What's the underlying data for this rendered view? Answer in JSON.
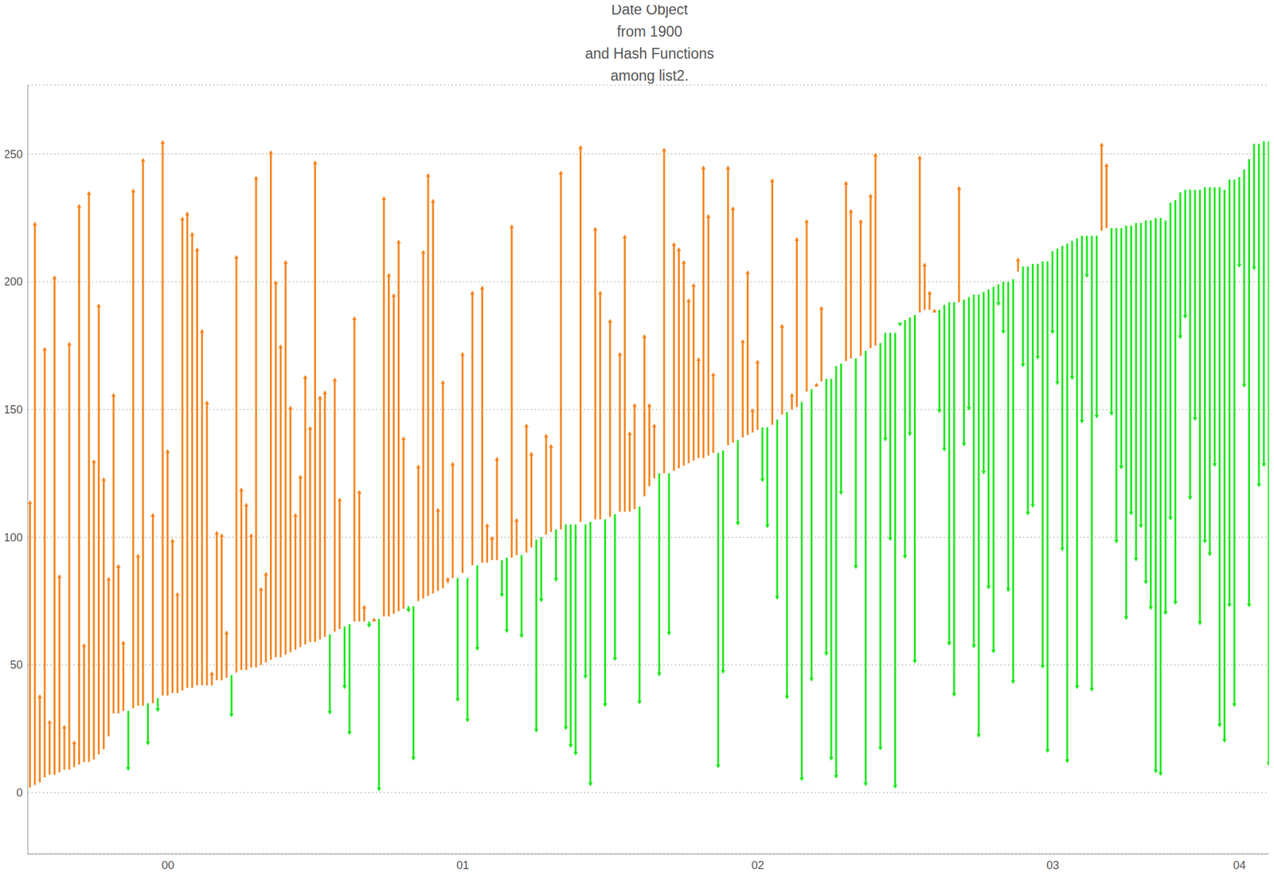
{
  "chart_data": {
    "type": "range_bar",
    "title": [
      "Date Object",
      "from 1900",
      "and Hash Functions",
      "among list2."
    ],
    "categories": [
      null,
      null,
      null,
      null,
      null,
      null,
      null,
      null,
      null,
      null,
      null,
      null,
      null,
      null,
      null,
      null,
      null,
      null,
      null,
      null,
      null,
      null,
      null,
      null,
      null,
      null,
      null,
      null,
      "00",
      null,
      null,
      null,
      null,
      null,
      null,
      null,
      null,
      null,
      null,
      null,
      null,
      null,
      null,
      null,
      null,
      null,
      null,
      null,
      null,
      null,
      null,
      null,
      null,
      null,
      null,
      null,
      null,
      null,
      null,
      null,
      null,
      null,
      null,
      null,
      null,
      null,
      null,
      null,
      null,
      null,
      null,
      null,
      null,
      null,
      null,
      null,
      null,
      null,
      null,
      null,
      null,
      null,
      null,
      null,
      null,
      null,
      null,
      null,
      "01",
      null,
      null,
      null,
      null,
      null,
      null,
      null,
      null,
      null,
      null,
      null,
      null,
      null,
      null,
      null,
      null,
      null,
      null,
      null,
      null,
      null,
      null,
      null,
      null,
      null,
      null,
      null,
      null,
      null,
      null,
      null,
      null,
      null,
      null,
      null,
      null,
      null,
      null,
      null,
      null,
      null,
      null,
      null,
      null,
      null,
      null,
      null,
      null,
      null,
      null,
      null,
      null,
      null,
      null,
      null,
      null,
      null,
      null,
      null,
      "02",
      null,
      null,
      null,
      null,
      null,
      null,
      null,
      null,
      null,
      null,
      null,
      null,
      null,
      null,
      null,
      null,
      null,
      null,
      null,
      null,
      null,
      null,
      null,
      null,
      null,
      null,
      null,
      null,
      null,
      null,
      null,
      null,
      null,
      null,
      null,
      null,
      null,
      null,
      null,
      null,
      null,
      null,
      null,
      null,
      null,
      null,
      null,
      null,
      null,
      null,
      null,
      null,
      null,
      null,
      null,
      null,
      null,
      null,
      null,
      "03",
      null,
      null,
      null,
      null,
      null,
      null,
      null,
      null,
      null,
      null,
      null,
      null,
      null,
      null,
      null,
      null,
      null,
      null,
      null,
      null,
      null,
      null,
      null,
      null,
      null,
      null,
      null,
      null,
      null,
      null,
      null,
      null,
      null,
      null,
      null,
      null,
      null,
      "04",
      null,
      null,
      null,
      null,
      null,
      null
    ],
    "values": [
      [
        2,
        114
      ],
      [
        3,
        223
      ],
      [
        4,
        38
      ],
      [
        6,
        174
      ],
      [
        7,
        28
      ],
      [
        7,
        202
      ],
      [
        8,
        85
      ],
      [
        9,
        26
      ],
      [
        9,
        176
      ],
      [
        10,
        20
      ],
      [
        11,
        230
      ],
      [
        12,
        58
      ],
      [
        12,
        235
      ],
      [
        13,
        130
      ],
      [
        15,
        191
      ],
      [
        17,
        123
      ],
      [
        22,
        84
      ],
      [
        31,
        156
      ],
      [
        31,
        89
      ],
      [
        32,
        59
      ],
      [
        32,
        9
      ],
      [
        33,
        236
      ],
      [
        34,
        93
      ],
      [
        34,
        248
      ],
      [
        35,
        19
      ],
      [
        35,
        109
      ],
      [
        37,
        32
      ],
      [
        38,
        255
      ],
      [
        38,
        134
      ],
      [
        39,
        99
      ],
      [
        39,
        78
      ],
      [
        40,
        225
      ],
      [
        41,
        227
      ],
      [
        41,
        219
      ],
      [
        42,
        213
      ],
      [
        42,
        181
      ],
      [
        42,
        153
      ],
      [
        42,
        47
      ],
      [
        44,
        102
      ],
      [
        44,
        101
      ],
      [
        45,
        63
      ],
      [
        46,
        30
      ],
      [
        47,
        210
      ],
      [
        48,
        119
      ],
      [
        48,
        113
      ],
      [
        49,
        101
      ],
      [
        49,
        241
      ],
      [
        50,
        80
      ],
      [
        51,
        86
      ],
      [
        52,
        251
      ],
      [
        53,
        200
      ],
      [
        53,
        175
      ],
      [
        54,
        208
      ],
      [
        55,
        151
      ],
      [
        56,
        109
      ],
      [
        57,
        124
      ],
      [
        58,
        163
      ],
      [
        59,
        143
      ],
      [
        59,
        247
      ],
      [
        60,
        155
      ],
      [
        61,
        157
      ],
      [
        62,
        31
      ],
      [
        63,
        162
      ],
      [
        64,
        115
      ],
      [
        65,
        41
      ],
      [
        66,
        23
      ],
      [
        67,
        186
      ],
      [
        67,
        118
      ],
      [
        67,
        73
      ],
      [
        67,
        65
      ],
      [
        68,
        68
      ],
      [
        68,
        1
      ],
      [
        69,
        233
      ],
      [
        69,
        203
      ],
      [
        70,
        195
      ],
      [
        71,
        216
      ],
      [
        72,
        139
      ],
      [
        73,
        71
      ],
      [
        73,
        13
      ],
      [
        75,
        128
      ],
      [
        76,
        212
      ],
      [
        77,
        242
      ],
      [
        78,
        232
      ],
      [
        79,
        111
      ],
      [
        80,
        161
      ],
      [
        82,
        84
      ],
      [
        84,
        129
      ],
      [
        84,
        36
      ],
      [
        86,
        172
      ],
      [
        84,
        28
      ],
      [
        89,
        196
      ],
      [
        89,
        56
      ],
      [
        90,
        198
      ],
      [
        90,
        105
      ],
      [
        91,
        100
      ],
      [
        91,
        131
      ],
      [
        91,
        77
      ],
      [
        92,
        63
      ],
      [
        92,
        222
      ],
      [
        93,
        107
      ],
      [
        93,
        61
      ],
      [
        94,
        144
      ],
      [
        96,
        133
      ],
      [
        99,
        24
      ],
      [
        100,
        75
      ],
      [
        101,
        140
      ],
      [
        102,
        136
      ],
      [
        103,
        83
      ],
      [
        103,
        243
      ],
      [
        105,
        25
      ],
      [
        105,
        18
      ],
      [
        105,
        15
      ],
      [
        106,
        253
      ],
      [
        105,
        45
      ],
      [
        106,
        3
      ],
      [
        107,
        221
      ],
      [
        107,
        196
      ],
      [
        107,
        34
      ],
      [
        108,
        185
      ],
      [
        109,
        52
      ],
      [
        110,
        172
      ],
      [
        110,
        218
      ],
      [
        110,
        141
      ],
      [
        111,
        152
      ],
      [
        112,
        35
      ],
      [
        116,
        179
      ],
      [
        120,
        152
      ],
      [
        123,
        144
      ],
      [
        125,
        46
      ],
      [
        125,
        252
      ],
      [
        125,
        62
      ],
      [
        126,
        215
      ],
      [
        127,
        213
      ],
      [
        128,
        208
      ],
      [
        129,
        193
      ],
      [
        130,
        199
      ],
      [
        131,
        170
      ],
      [
        131,
        245
      ],
      [
        132,
        226
      ],
      [
        133,
        164
      ],
      [
        133,
        10
      ],
      [
        134,
        47
      ],
      [
        136,
        245
      ],
      [
        137,
        229
      ],
      [
        138,
        105
      ],
      [
        139,
        177
      ],
      [
        140,
        204
      ],
      [
        141,
        150
      ],
      [
        142,
        169
      ],
      [
        143,
        122
      ],
      [
        143,
        104
      ],
      [
        144,
        240
      ],
      [
        146,
        76
      ],
      [
        148,
        183
      ],
      [
        149,
        37
      ],
      [
        150,
        156
      ],
      [
        151,
        217
      ],
      [
        153,
        5
      ],
      [
        157,
        224
      ],
      [
        158,
        44
      ],
      [
        159,
        160
      ],
      [
        161,
        190
      ],
      [
        162,
        54
      ],
      [
        162,
        13
      ],
      [
        167,
        6
      ],
      [
        168,
        117
      ],
      [
        169,
        239
      ],
      [
        170,
        228
      ],
      [
        170,
        88
      ],
      [
        171,
        224
      ],
      [
        173,
        3
      ],
      [
        174,
        234
      ],
      [
        175,
        250
      ],
      [
        176,
        17
      ],
      [
        180,
        138
      ],
      [
        180,
        99
      ],
      [
        180,
        2
      ],
      [
        184,
        183
      ],
      [
        185,
        92
      ],
      [
        186,
        140
      ],
      [
        187,
        51
      ],
      [
        188,
        249
      ],
      [
        189,
        207
      ],
      [
        189,
        196
      ],
      [
        189,
        189
      ],
      [
        189,
        149
      ],
      [
        191,
        134
      ],
      [
        192,
        58
      ],
      [
        192,
        38
      ],
      [
        192,
        237
      ],
      [
        193,
        136
      ],
      [
        194,
        150
      ],
      [
        195,
        57
      ],
      [
        195,
        22
      ],
      [
        196,
        125
      ],
      [
        197,
        80
      ],
      [
        198,
        55
      ],
      [
        199,
        191
      ],
      [
        200,
        180
      ],
      [
        200,
        79
      ],
      [
        201,
        43
      ],
      [
        204,
        209
      ],
      [
        206,
        167
      ],
      [
        206,
        109
      ],
      [
        207,
        112
      ],
      [
        207,
        170
      ],
      [
        208,
        49
      ],
      [
        208,
        16
      ],
      [
        212,
        180
      ],
      [
        213,
        160
      ],
      [
        214,
        95
      ],
      [
        215,
        12
      ],
      [
        216,
        162
      ],
      [
        217,
        41
      ],
      [
        218,
        145
      ],
      [
        218,
        202
      ],
      [
        218,
        40
      ],
      [
        218,
        147
      ],
      [
        220,
        254
      ],
      [
        221,
        246
      ],
      [
        221,
        148
      ],
      [
        221,
        98
      ],
      [
        221,
        127
      ],
      [
        222,
        68
      ],
      [
        222,
        109
      ],
      [
        223,
        91
      ],
      [
        223,
        104
      ],
      [
        224,
        82
      ],
      [
        224,
        72
      ],
      [
        225,
        8
      ],
      [
        225,
        7
      ],
      [
        224,
        70
      ],
      [
        231,
        107
      ],
      [
        232,
        74
      ],
      [
        235,
        178
      ],
      [
        236,
        186
      ],
      [
        236,
        115
      ],
      [
        236,
        146
      ],
      [
        236,
        66
      ],
      [
        237,
        98
      ],
      [
        237,
        93
      ],
      [
        237,
        128
      ],
      [
        237,
        26
      ],
      [
        236,
        20
      ],
      [
        240,
        73
      ],
      [
        240,
        34
      ],
      [
        241,
        206
      ],
      [
        244,
        159
      ],
      [
        248,
        73
      ],
      [
        254,
        205
      ],
      [
        254,
        120
      ],
      [
        255,
        128
      ],
      [
        255,
        11
      ]
    ],
    "colors": [
      "#f5851f",
      "#f5851f",
      "#f5851f",
      "#f5851f",
      "#f5851f",
      "#f5851f",
      "#f5851f",
      "#f5851f",
      "#f5851f",
      "#f5851f",
      "#f5851f",
      "#f5851f",
      "#f5851f",
      "#f5851f",
      "#f5851f",
      "#f5851f",
      "#f5851f",
      "#f5851f",
      "#f5851f",
      "#f5851f",
      "#1ee81e",
      "#f5851f",
      "#f5851f",
      "#f5851f",
      "#1ee81e",
      "#f5851f",
      "#1ee81e",
      "#f5851f",
      "#f5851f",
      "#f5851f",
      "#f5851f",
      "#f5851f",
      "#f5851f",
      "#f5851f",
      "#f5851f",
      "#f5851f",
      "#f5851f",
      "#f5851f",
      "#f5851f",
      "#f5851f",
      "#f5851f",
      "#1ee81e",
      "#f5851f",
      "#f5851f",
      "#f5851f",
      "#f5851f",
      "#f5851f",
      "#f5851f",
      "#f5851f",
      "#f5851f",
      "#f5851f",
      "#f5851f",
      "#f5851f",
      "#f5851f",
      "#f5851f",
      "#f5851f",
      "#f5851f",
      "#f5851f",
      "#f5851f",
      "#f5851f",
      "#f5851f",
      "#1ee81e",
      "#f5851f",
      "#f5851f",
      "#1ee81e",
      "#1ee81e",
      "#f5851f",
      "#f5851f",
      "#f5851f",
      "#1ee81e",
      "#f5851f",
      "#1ee81e",
      "#f5851f",
      "#f5851f",
      "#f5851f",
      "#f5851f",
      "#f5851f",
      "#1ee81e",
      "#1ee81e",
      "#f5851f",
      "#f5851f",
      "#f5851f",
      "#f5851f",
      "#f5851f",
      "#f5851f",
      "#f5851f",
      "#f5851f",
      "#1ee81e",
      "#f5851f",
      "#1ee81e",
      "#f5851f",
      "#1ee81e",
      "#f5851f",
      "#f5851f",
      "#f5851f",
      "#f5851f",
      "#1ee81e",
      "#1ee81e",
      "#f5851f",
      "#f5851f",
      "#1ee81e",
      "#f5851f",
      "#f5851f",
      "#1ee81e",
      "#1ee81e",
      "#f5851f",
      "#f5851f",
      "#1ee81e",
      "#f5851f",
      "#1ee81e",
      "#1ee81e",
      "#1ee81e",
      "#f5851f",
      "#1ee81e",
      "#1ee81e",
      "#f5851f",
      "#f5851f",
      "#1ee81e",
      "#f5851f",
      "#1ee81e",
      "#f5851f",
      "#f5851f",
      "#f5851f",
      "#f5851f",
      "#1ee81e",
      "#f5851f",
      "#f5851f",
      "#f5851f",
      "#1ee81e",
      "#f5851f",
      "#1ee81e",
      "#f5851f",
      "#f5851f",
      "#f5851f",
      "#f5851f",
      "#f5851f",
      "#f5851f",
      "#f5851f",
      "#f5851f",
      "#f5851f",
      "#1ee81e",
      "#1ee81e",
      "#f5851f",
      "#f5851f",
      "#1ee81e",
      "#f5851f",
      "#f5851f",
      "#f5851f",
      "#f5851f",
      "#1ee81e",
      "#1ee81e",
      "#f5851f",
      "#1ee81e",
      "#f5851f",
      "#1ee81e",
      "#f5851f",
      "#f5851f",
      "#1ee81e",
      "#f5851f",
      "#1ee81e",
      "#f5851f",
      "#f5851f",
      "#1ee81e",
      "#1ee81e",
      "#1ee81e",
      "#1ee81e",
      "#f5851f",
      "#f5851f",
      "#1ee81e",
      "#f5851f",
      "#1ee81e",
      "#f5851f",
      "#f5851f",
      "#1ee81e",
      "#1ee81e",
      "#1ee81e",
      "#1ee81e",
      "#1ee81e",
      "#1ee81e",
      "#1ee81e",
      "#1ee81e",
      "#f5851f",
      "#f5851f",
      "#f5851f",
      "#f5851f",
      "#1ee81e",
      "#1ee81e",
      "#1ee81e",
      "#1ee81e",
      "#f5851f",
      "#1ee81e",
      "#1ee81e",
      "#1ee81e",
      "#1ee81e",
      "#1ee81e",
      "#1ee81e",
      "#1ee81e",
      "#1ee81e",
      "#1ee81e",
      "#1ee81e",
      "#1ee81e",
      "#f5851f",
      "#1ee81e",
      "#1ee81e",
      "#1ee81e",
      "#1ee81e",
      "#1ee81e",
      "#1ee81e",
      "#1ee81e",
      "#1ee81e",
      "#1ee81e",
      "#1ee81e",
      "#1ee81e",
      "#1ee81e",
      "#1ee81e",
      "#1ee81e",
      "#1ee81e",
      "#1ee81e",
      "#f5851f",
      "#f5851f",
      "#1ee81e",
      "#1ee81e",
      "#1ee81e",
      "#1ee81e",
      "#1ee81e",
      "#1ee81e",
      "#1ee81e",
      "#1ee81e",
      "#1ee81e",
      "#1ee81e",
      "#1ee81e",
      "#1ee81e",
      "#1ee81e",
      "#1ee81e",
      "#1ee81e",
      "#1ee81e",
      "#1ee81e",
      "#1ee81e",
      "#1ee81e",
      "#1ee81e",
      "#1ee81e",
      "#1ee81e",
      "#1ee81e",
      "#1ee81e",
      "#1ee81e",
      "#1ee81e",
      "#1ee81e",
      "#1ee81e",
      "#1ee81e",
      "#1ee81e",
      "#1ee81e",
      "#1ee81e",
      "#1ee81e"
    ],
    "ylim": [
      -24,
      277
    ],
    "yticks": [
      0,
      50,
      100,
      150,
      200,
      250
    ],
    "grid": true
  }
}
